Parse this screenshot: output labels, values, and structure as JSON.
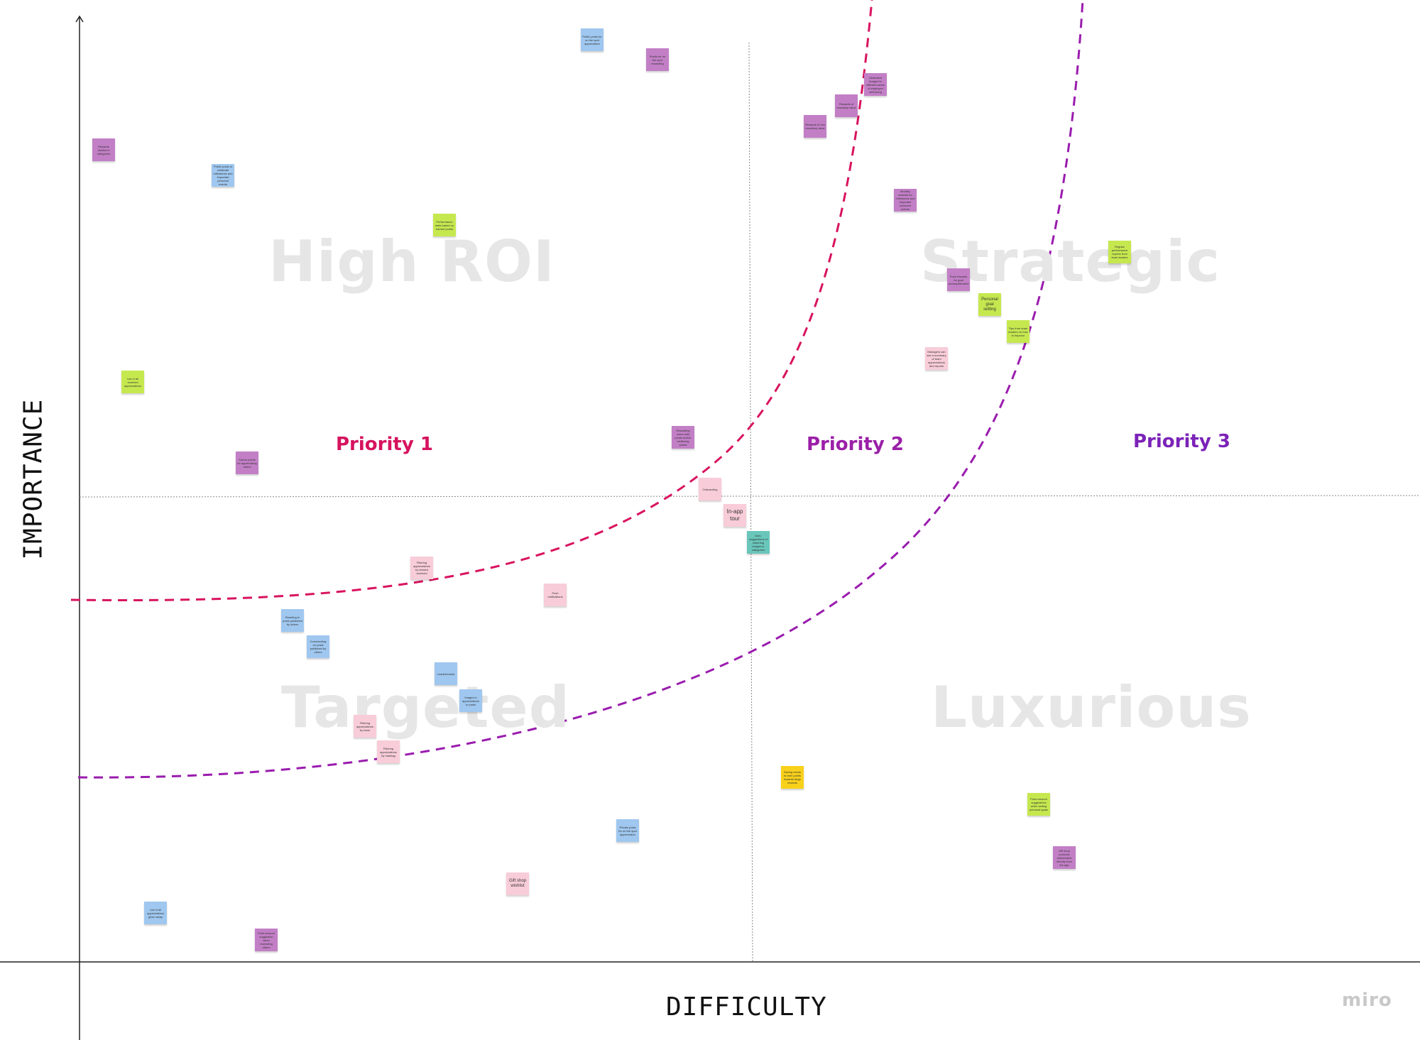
{
  "quadrants": {
    "top_left": "High ROI",
    "top_right": "Strategic",
    "bottom_left": "Targeted",
    "bottom_right": "Luxurious"
  },
  "priorities": {
    "p1": "Priority 1",
    "p2": "Priority 2",
    "p3": "Priority 3"
  },
  "axes": {
    "y_label": "IMPORTANCE",
    "x_label": "DIFFICULTY"
  },
  "watermark": "miro",
  "colors": {
    "priority1": "#d6135e",
    "priority2": "#9b1fa8",
    "priority3": "#7b22b8",
    "curve1": "#d8145f",
    "curve2": "#9a1cae",
    "blue": "#9fc7ef",
    "purple": "#c27fc6",
    "green": "#c6e84f",
    "pink": "#f8ccd9",
    "teal": "#69c6bb",
    "yellow": "#f8d11b"
  },
  "notes": {
    "n1": "Public posts for on the spot appreciation",
    "n2": "Points for on the spot rewarding",
    "n3": "Rewards divided in categories",
    "n4": "Public posts to celebrate milestones and important personal events",
    "n5": "Performance stats based on earned points",
    "n6": "List of all received appreciations",
    "n7": "Karma points for appreciating others",
    "n8": "Rewards of non monetary value",
    "n9": "Rewards of monetary value",
    "n10": "Dedicated budget for different areas of employee well-being",
    "n11": "Monthly rewards for milestones and important personal events",
    "n12": "Point rewards for goal accomplishment",
    "n13": "Personal goal setting",
    "n14": "Tips from team leaders on how to improve",
    "n15": "Regular performance reports from team leaders",
    "n16": "Managers can see a summary of team appreciations and reports",
    "n17": "Rewarding users with points and/or wellbeing points",
    "n18": "Onboarding",
    "n19": "In-app tour",
    "n20": "Auto-suggestions of matching budget or categories",
    "n21": "Filtering appreciations by viewed received",
    "n22": "Push notifications",
    "n23": "Reacting to posts published by others",
    "n24": "Commenting on posts published by others",
    "n25": "Leaderboards",
    "n26": "Images in appreciations or posts",
    "n27": "Filtering appreciations by team",
    "n28": "Filtering appreciations by hashtag",
    "n29": "Saving needs to earn points towards large rewards",
    "n30": "Point amount suggestions when setting personal goals",
    "n31": "Private posts for on the spot appreciation",
    "n32": "Gift shop wishlist",
    "n33": "Gift shop products redeemable directly from the app",
    "n34": "List of all appreciations given away",
    "n35": "Point amount suggestion when rewarding others"
  }
}
